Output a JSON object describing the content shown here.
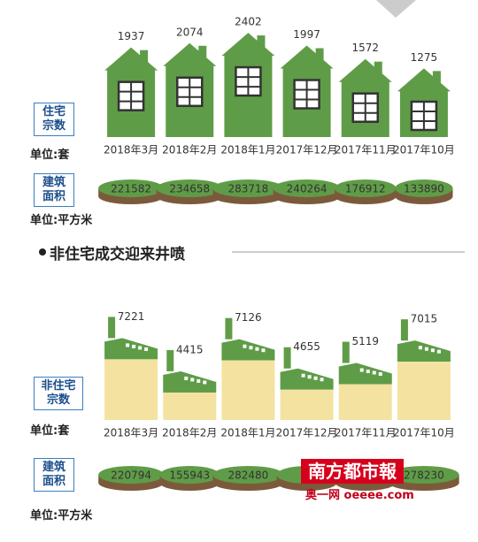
{
  "chart_data": [
    {
      "type": "house",
      "categories": [
        "2018年3月",
        "2018年2月",
        "2018年1月",
        "2017年12月",
        "2017年11月",
        "2017年10月"
      ],
      "ylim": [
        -900,
        2600
      ],
      "series": [
        {
          "name": "住宅宗数",
          "unit": "单位:套",
          "color": "#5f9c47",
          "values": [
            1937,
            2074,
            2402,
            1997,
            1572,
            1275
          ]
        },
        {
          "name": "建筑面积",
          "unit": "单位:平方米",
          "color": "#5f9c47",
          "values": [
            221582,
            234658,
            283718,
            240264,
            176912,
            133890
          ]
        }
      ]
    },
    {
      "type": "factory",
      "heading": "非住宅成交迎来井喷",
      "categories": [
        "2018年3月",
        "2018年2月",
        "2018年1月",
        "2017年12月",
        "2017年11月",
        "2017年10月"
      ],
      "ylim": [
        -600,
        8000
      ],
      "series": [
        {
          "name": "非住宅宗数",
          "unit": "单位:套",
          "color": "#f4e3a0",
          "values": [
            7221,
            4415,
            7126,
            4655,
            5119,
            7015
          ]
        },
        {
          "name": "建筑面积",
          "unit": "单位:平方米",
          "color": "#5f9c47",
          "values": [
            220794,
            155943,
            282480,
            null,
            null,
            278230
          ]
        }
      ]
    }
  ],
  "watermark": {
    "brand": "南方都市報",
    "site": "奥一网 oeeee.com"
  }
}
